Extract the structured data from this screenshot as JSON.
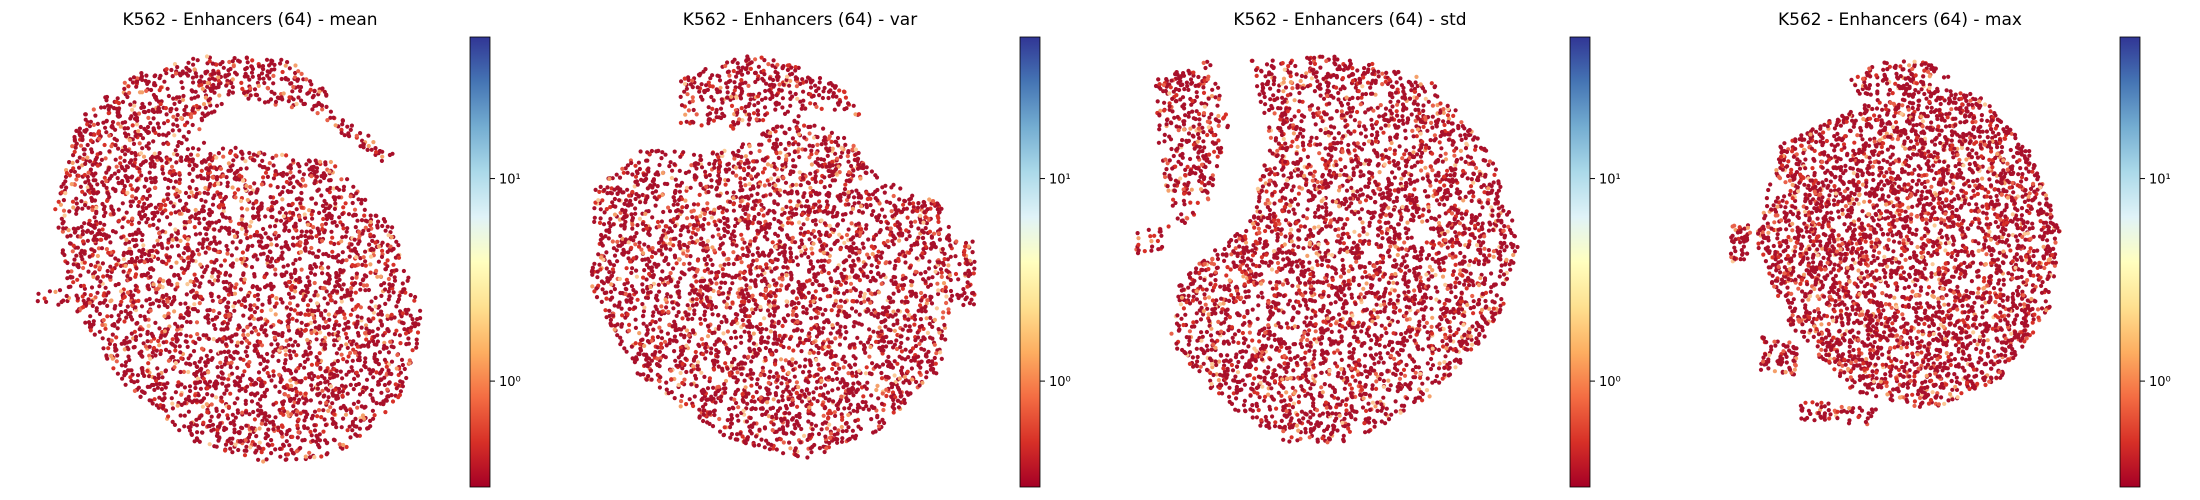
{
  "colors": {
    "cmap": "RdYlBu",
    "cmap_stops": [
      "#a50026",
      "#d73027",
      "#f46d43",
      "#fdae61",
      "#fee090",
      "#ffffbf",
      "#e0f3f8",
      "#abd9e9",
      "#74add1",
      "#4575b4",
      "#313695"
    ],
    "dominant_point": "#a8102a",
    "secondary_points": [
      "#d73027",
      "#e8614a",
      "#f4a06a",
      "#fbc896"
    ]
  },
  "chart_data": [
    {
      "type": "scatter",
      "title": "K562 - Enhancers (64) - mean",
      "embedding": "2-D projection, no axes shown",
      "colorbar": {
        "scale": "log",
        "range": [
          0.3,
          50
        ],
        "ticks": [
          {
            "value": 1,
            "label": "10⁰"
          },
          {
            "value": 10,
            "label": "10¹"
          }
        ]
      },
      "point_count_approx": 4000
    },
    {
      "type": "scatter",
      "title": "K562 - Enhancers (64) - var",
      "embedding": "2-D projection, no axes shown",
      "colorbar": {
        "scale": "log",
        "range": [
          0.3,
          50
        ],
        "ticks": [
          {
            "value": 1,
            "label": "10⁰"
          },
          {
            "value": 10,
            "label": "10¹"
          }
        ]
      },
      "point_count_approx": 4000
    },
    {
      "type": "scatter",
      "title": "K562 - Enhancers (64) - std",
      "embedding": "2-D projection, no axes shown",
      "colorbar": {
        "scale": "log",
        "range": [
          0.3,
          50
        ],
        "ticks": [
          {
            "value": 1,
            "label": "10⁰"
          },
          {
            "value": 10,
            "label": "10¹"
          }
        ]
      },
      "point_count_approx": 4000
    },
    {
      "type": "scatter",
      "title": "K562 - Enhancers (64) - max",
      "embedding": "2-D projection, no axes shown",
      "colorbar": {
        "scale": "log",
        "range": [
          0.3,
          50
        ],
        "ticks": [
          {
            "value": 1,
            "label": "10⁰"
          },
          {
            "value": 10,
            "label": "10¹"
          }
        ]
      },
      "point_count_approx": 4000
    }
  ]
}
